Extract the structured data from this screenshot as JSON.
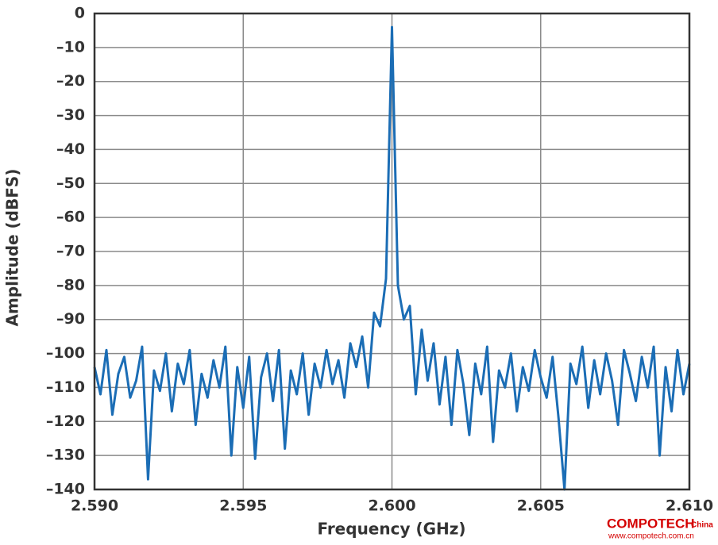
{
  "chart_data": {
    "type": "line",
    "xlabel": "Frequency (GHz)",
    "ylabel": "Amplitude (dBFS)",
    "xlim": [
      2.59,
      2.61
    ],
    "ylim": [
      -140,
      0
    ],
    "xticks": [
      {
        "value": 2.59,
        "label": "2.590"
      },
      {
        "value": 2.595,
        "label": "2.595"
      },
      {
        "value": 2.6,
        "label": "2.600"
      },
      {
        "value": 2.605,
        "label": "2.605"
      },
      {
        "value": 2.61,
        "label": "2.610"
      }
    ],
    "yticks": [
      0,
      {
        "value": -10,
        "label": "–10"
      },
      {
        "value": -20,
        "label": "–20"
      },
      {
        "value": -30,
        "label": "–30"
      },
      {
        "value": -40,
        "label": "–40"
      },
      {
        "value": -50,
        "label": "–50"
      },
      {
        "value": -60,
        "label": "–60"
      },
      {
        "value": -70,
        "label": "–70"
      },
      {
        "value": -80,
        "label": "–80"
      },
      {
        "value": -90,
        "label": "–90"
      },
      {
        "value": -100,
        "label": "–100"
      },
      {
        "value": -110,
        "label": "–110"
      },
      {
        "value": -120,
        "label": "–120"
      },
      {
        "value": -130,
        "label": "–130"
      },
      {
        "value": -140,
        "label": "–140"
      }
    ],
    "grid": true,
    "x": [
      2.59,
      2.5902,
      2.5904,
      2.5906,
      2.5908,
      2.591,
      2.5912,
      2.5914,
      2.5916,
      2.5918,
      2.592,
      2.5922,
      2.5924,
      2.5926,
      2.5928,
      2.593,
      2.5932,
      2.5934,
      2.5936,
      2.5938,
      2.594,
      2.5942,
      2.5944,
      2.5946,
      2.5948,
      2.595,
      2.5952,
      2.5954,
      2.5956,
      2.5958,
      2.596,
      2.5962,
      2.5964,
      2.5966,
      2.5968,
      2.597,
      2.5972,
      2.5974,
      2.5976,
      2.5978,
      2.598,
      2.5982,
      2.5984,
      2.5986,
      2.5988,
      2.599,
      2.5992,
      2.5994,
      2.5996,
      2.5998,
      2.6,
      2.6002,
      2.6004,
      2.6006,
      2.6008,
      2.601,
      2.6012,
      2.6014,
      2.6016,
      2.6018,
      2.602,
      2.6022,
      2.6024,
      2.6026,
      2.6028,
      2.603,
      2.6032,
      2.6034,
      2.6036,
      2.6038,
      2.604,
      2.6042,
      2.6044,
      2.6046,
      2.6048,
      2.605,
      2.6052,
      2.6054,
      2.6056,
      2.6058,
      2.606,
      2.6062,
      2.6064,
      2.6066,
      2.6068,
      2.607,
      2.6072,
      2.6074,
      2.6076,
      2.6078,
      2.608,
      2.6082,
      2.6084,
      2.6086,
      2.6088,
      2.609,
      2.6092,
      2.6094,
      2.6096,
      2.6098,
      2.61
    ],
    "series": [
      {
        "color": "#1b6db5",
        "values": [
          -104,
          -112,
          -99,
          -118,
          -106,
          -101,
          -113,
          -108,
          -98,
          -137,
          -105,
          -111,
          -100,
          -117,
          -103,
          -109,
          -99,
          -121,
          -106,
          -113,
          -102,
          -110,
          -98,
          -130,
          -104,
          -116,
          -101,
          -131,
          -107,
          -100,
          -114,
          -99,
          -128,
          -105,
          -112,
          -100,
          -118,
          -103,
          -110,
          -99,
          -109,
          -102,
          -113,
          -97,
          -104,
          -95,
          -110,
          -88,
          -92,
          -78,
          -4,
          -80,
          -90,
          -86,
          -112,
          -93,
          -108,
          -97,
          -115,
          -101,
          -121,
          -99,
          -109,
          -124,
          -103,
          -112,
          -98,
          -126,
          -105,
          -110,
          -100,
          -117,
          -104,
          -111,
          -99,
          -107,
          -113,
          -101,
          -119,
          -140,
          -103,
          -109,
          -98,
          -116,
          -102,
          -112,
          -100,
          -108,
          -121,
          -99,
          -106,
          -114,
          -101,
          -110,
          -98,
          -130,
          -104,
          -117,
          -99,
          -112,
          -103
        ]
      }
    ],
    "watermark": {
      "brand": "COMPOTECH",
      "suffix": "China",
      "url": "www.compotech.com.cn"
    }
  }
}
